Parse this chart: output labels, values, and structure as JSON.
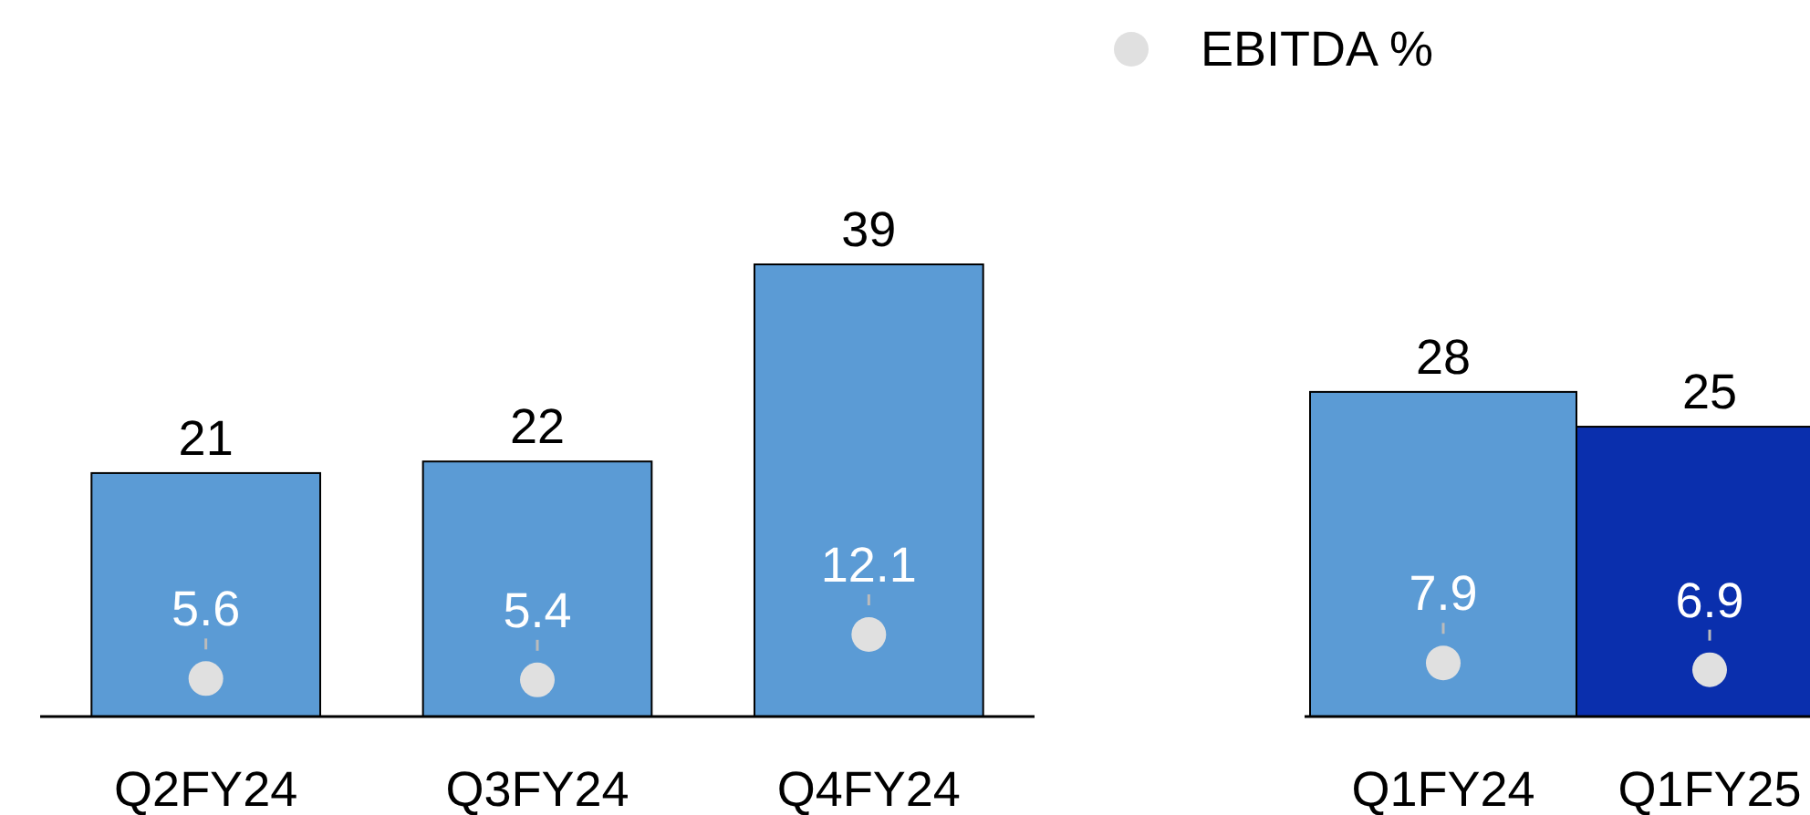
{
  "chart_data": [
    {
      "type": "bar",
      "categories": [
        "Q2FY24",
        "Q3FY24",
        "Q4FY24"
      ],
      "tick_labels": "x",
      "data_labels": true,
      "marker": "circle",
      "series": [
        {
          "type": "bar",
          "color": "#5b9bd5",
          "values": [
            21,
            22,
            39
          ]
        },
        {
          "type": "scatter",
          "color": "#e0e0e0",
          "axis": "y2",
          "values": [
            5.6,
            5.4,
            12.1
          ]
        }
      ]
    },
    {
      "type": "bar",
      "categories": [
        "Q1FY24",
        "Q1FY25"
      ],
      "tick_labels": "x",
      "data_labels": true,
      "legend": "top",
      "marker": "circle",
      "series": [
        {
          "type": "bar",
          "colors": [
            "#5b9bd5",
            "#0a2fad"
          ],
          "values": [
            28,
            25
          ]
        },
        {
          "type": "scatter",
          "name": "EBITDA %",
          "color": "#e0e0e0",
          "axis": "y2",
          "values": [
            7.9,
            6.9
          ]
        }
      ]
    }
  ]
}
